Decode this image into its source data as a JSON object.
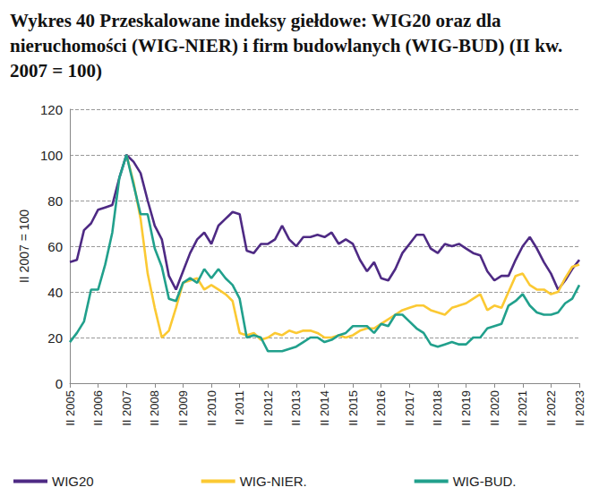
{
  "chart_data": {
    "type": "line",
    "title": "Wykres 40 Przeskalowane indeksy giełdowe: WIG20 oraz dla nieruchomości (WIG-NIER) i firm budowlanych (WIG-BUD) (II kw. 2007 = 100)",
    "y_label": "II 2007 = 100",
    "categories": [
      "II 2005",
      null,
      null,
      null,
      "II 2006",
      null,
      null,
      null,
      "II 2007",
      null,
      null,
      null,
      "II 2008",
      null,
      null,
      null,
      "II 2009",
      null,
      null,
      null,
      "II 2010",
      null,
      null,
      null,
      "II 2011",
      null,
      null,
      null,
      "II 2012",
      null,
      null,
      null,
      "II 2013",
      null,
      null,
      null,
      "II 2014",
      null,
      null,
      null,
      "II 2015",
      null,
      null,
      null,
      "II 2016",
      null,
      null,
      null,
      "II 2017",
      null,
      null,
      null,
      "II 2018",
      null,
      null,
      null,
      "II 2019",
      null,
      null,
      null,
      "II 2020",
      null,
      null,
      null,
      "II 2021",
      null,
      null,
      null,
      "II 2022",
      null,
      null,
      null,
      "II 2023"
    ],
    "series": [
      {
        "name": "WIG20",
        "color": "#4e2a84",
        "values": [
          53,
          54,
          67,
          70,
          76,
          77,
          78,
          90,
          100,
          97,
          92,
          80,
          69,
          63,
          47,
          41,
          49,
          57,
          63,
          66,
          61,
          69,
          72,
          75,
          74,
          58,
          57,
          61,
          61,
          63,
          69,
          63,
          60,
          64,
          64,
          65,
          64,
          66,
          61,
          63,
          61,
          54,
          49,
          53,
          46,
          45,
          50,
          57,
          61,
          65,
          65,
          59,
          57,
          61,
          60,
          61,
          59,
          57,
          56,
          49,
          45,
          47,
          47,
          54,
          60,
          64,
          59,
          53,
          48,
          41,
          45,
          50,
          54
        ]
      },
      {
        "name": "WIG-NIER.",
        "color": "#fbc933",
        "values": [
          null,
          null,
          null,
          null,
          null,
          null,
          null,
          null,
          100,
          88,
          72,
          48,
          33,
          20,
          23,
          33,
          44,
          45,
          46,
          41,
          43,
          41,
          39,
          36,
          22,
          21,
          22,
          19,
          20,
          22,
          21,
          23,
          22,
          23,
          23,
          22,
          20,
          20,
          21,
          20,
          21,
          23,
          24,
          24,
          26,
          28,
          30,
          32,
          33,
          34,
          34,
          32,
          31,
          30,
          33,
          34,
          35,
          37,
          39,
          32,
          34,
          33,
          40,
          47,
          48,
          43,
          41,
          41,
          39,
          40,
          46,
          51,
          52
        ]
      },
      {
        "name": "WIG-BUD.",
        "color": "#21a08c",
        "values": [
          18,
          22,
          27,
          41,
          41,
          52,
          66,
          90,
          100,
          87,
          74,
          74,
          59,
          51,
          37,
          36,
          44,
          46,
          44,
          50,
          46,
          50,
          46,
          43,
          37,
          20,
          21,
          20,
          14,
          14,
          14,
          15,
          16,
          18,
          20,
          20,
          18,
          19,
          21,
          22,
          25,
          25,
          25,
          22,
          26,
          25,
          30,
          30,
          27,
          24,
          22,
          17,
          16,
          17,
          18,
          17,
          17,
          20,
          20,
          24,
          25,
          26,
          34,
          36,
          39,
          34,
          31,
          30,
          30,
          31,
          35,
          37,
          43
        ]
      }
    ],
    "ylim": [
      0,
      120
    ],
    "yticks": [
      0,
      20,
      40,
      60,
      80,
      100,
      120
    ],
    "grid": true,
    "legend": "bottom"
  }
}
